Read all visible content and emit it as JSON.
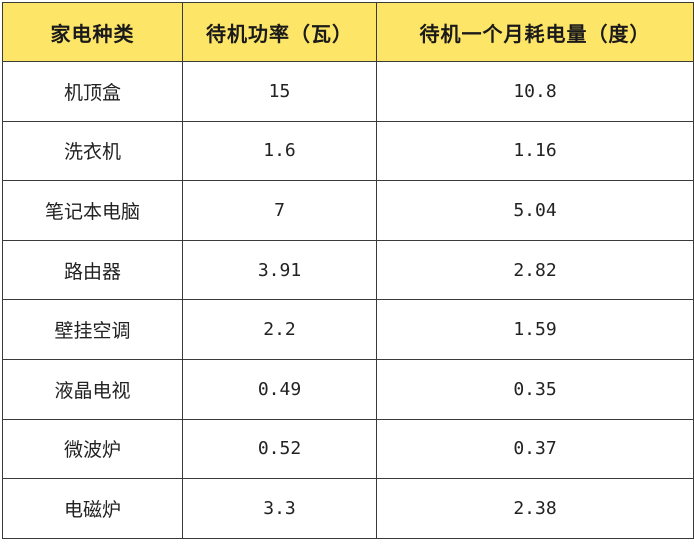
{
  "colors": {
    "header_bg": "#FDE567",
    "border": "#3a3a3a"
  },
  "table": {
    "headers": [
      "家电种类",
      "待机功率（瓦）",
      "待机一个月耗电量（度）"
    ],
    "rows": [
      [
        "机顶盒",
        "15",
        "10.8"
      ],
      [
        "洗衣机",
        "1.6",
        "1.16"
      ],
      [
        "笔记本电脑",
        "7",
        "5.04"
      ],
      [
        "路由器",
        "3.91",
        "2.82"
      ],
      [
        "壁挂空调",
        "2.2",
        "1.59"
      ],
      [
        "液晶电视",
        "0.49",
        "0.35"
      ],
      [
        "微波炉",
        "0.52",
        "0.37"
      ],
      [
        "电磁炉",
        "3.3",
        "2.38"
      ]
    ]
  }
}
